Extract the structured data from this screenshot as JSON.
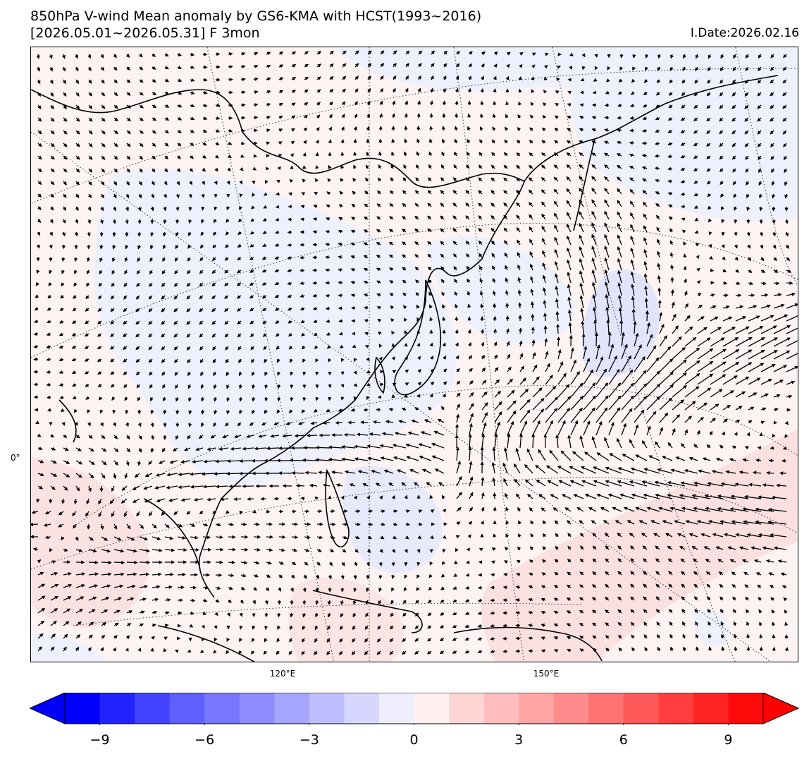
{
  "header": {
    "title_line1": "850hPa V-wind Mean anomaly by GS6-KMA with HCST(1993~2016)",
    "title_line2": "[2026.05.01~2026.05.31] F 3mon",
    "init_date": "I.Date:2026.02.16"
  },
  "map": {
    "lon_labels": [
      "120°E",
      "150°E"
    ],
    "lat_labels": [
      "0°"
    ],
    "shading": "850hPa V-wind anomaly (m/s)",
    "vectors": "850hPa wind anomaly",
    "features": [
      "coastlines",
      "country borders",
      "graticule (dotted)"
    ]
  },
  "colorbar": {
    "levels": [
      -10,
      -9,
      -8,
      -7,
      -6,
      -5,
      -4,
      -3,
      -2,
      -1,
      0,
      1,
      2,
      3,
      4,
      5,
      6,
      7,
      8,
      9,
      10
    ],
    "colors": [
      "#0000ff",
      "#2222ff",
      "#4343ff",
      "#5f5fff",
      "#7676ff",
      "#8c8cff",
      "#a5a5ff",
      "#bdbdff",
      "#d6d6ff",
      "#eeeeff",
      "#fff0f0",
      "#ffd6d6",
      "#ffbdbd",
      "#ffa5a5",
      "#ff8c8c",
      "#ff7272",
      "#ff5858",
      "#ff3f3f",
      "#ff2424",
      "#ff0a0a"
    ],
    "extend_low_color": "#0000ff",
    "extend_high_color": "#ff0000",
    "tick_labels": [
      "−9",
      "−6",
      "−3",
      "0",
      "3",
      "6",
      "9"
    ],
    "tick_values": [
      -9,
      -6,
      -3,
      0,
      3,
      6,
      9
    ]
  }
}
